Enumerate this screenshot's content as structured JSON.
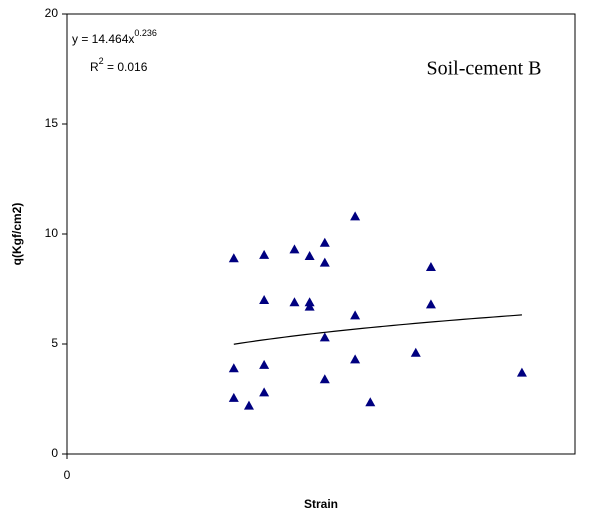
{
  "chart_data": {
    "type": "scatter",
    "title": "Soil-cement B",
    "x_label": "Strain",
    "y_label": "q(Kgf/cm2)",
    "xlim": [
      0,
      0.0335
    ],
    "ylim": [
      0,
      20
    ],
    "xticks": [
      0
    ],
    "yticks": [
      0,
      5,
      10,
      15,
      20
    ],
    "grid": false,
    "series": [
      {
        "name": "q",
        "color": "#000080",
        "x": [
          0.011,
          0.011,
          0.011,
          0.012,
          0.013,
          0.013,
          0.013,
          0.013,
          0.015,
          0.015,
          0.016,
          0.016,
          0.016,
          0.017,
          0.017,
          0.017,
          0.017,
          0.019,
          0.019,
          0.019,
          0.02,
          0.023,
          0.024,
          0.024,
          0.03
        ],
        "values": [
          8.9,
          3.9,
          2.55,
          2.2,
          9.05,
          7.0,
          4.05,
          2.8,
          9.3,
          6.9,
          9.0,
          6.9,
          6.7,
          9.6,
          8.7,
          5.3,
          3.4,
          10.8,
          6.3,
          4.3,
          2.35,
          4.6,
          8.5,
          6.8,
          3.7
        ]
      }
    ],
    "trendline": {
      "type": "power",
      "coefficient": 14.464,
      "exponent": 0.236,
      "r_squared": 0.016,
      "x_range": [
        0.011,
        0.03
      ],
      "equation_label": "y = 14.464x",
      "exponent_label": "0.236",
      "r_squared_label": "R",
      "r_squared_sup": "2",
      "r_squared_value_label": " = 0.016"
    }
  }
}
